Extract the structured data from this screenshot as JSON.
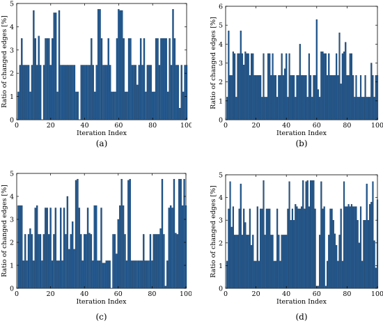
{
  "chart_data": [
    {
      "type": "bar",
      "panel_label": "(a)",
      "xlabel": "Iteration Index",
      "ylabel": "Ratio of changed edges [%]",
      "xlim": [
        0,
        100
      ],
      "ylim": [
        0,
        5
      ],
      "xticks": [
        "0",
        "20",
        "40",
        "60",
        "80",
        "100"
      ],
      "yticks": [
        "0",
        "1",
        "2",
        "3",
        "4",
        "5"
      ],
      "bar_color": "#1f5a96",
      "x": [
        1,
        2,
        3,
        4,
        5,
        6,
        7,
        8,
        9,
        10,
        11,
        12,
        13,
        14,
        15,
        16,
        17,
        18,
        19,
        20,
        21,
        22,
        23,
        24,
        25,
        26,
        27,
        28,
        29,
        30,
        31,
        32,
        33,
        34,
        35,
        36,
        37,
        38,
        39,
        40,
        41,
        42,
        43,
        44,
        45,
        46,
        47,
        48,
        49,
        50,
        51,
        52,
        53,
        54,
        55,
        56,
        57,
        58,
        59,
        60,
        61,
        62,
        63,
        64,
        65,
        66,
        67,
        68,
        69,
        70,
        71,
        72,
        73,
        74,
        75,
        76,
        77,
        78,
        79,
        80,
        81,
        82,
        83,
        84,
        85,
        86,
        87,
        88,
        89,
        90,
        91,
        92,
        93,
        94,
        95,
        96,
        97,
        98,
        99,
        100
      ],
      "values": [
        1.2,
        2.35,
        3.5,
        2.35,
        2.35,
        2.35,
        2.35,
        1.2,
        2.35,
        4.7,
        3.5,
        2.35,
        3.6,
        2.35,
        0,
        2.35,
        3.5,
        3.5,
        3.5,
        2.35,
        3.5,
        4.6,
        4.6,
        1.2,
        4.7,
        2.35,
        2.35,
        2.35,
        2.35,
        2.35,
        2.35,
        2.35,
        2.35,
        2.35,
        1.2,
        1.2,
        0,
        2.35,
        2.35,
        2.35,
        2.35,
        2.35,
        2.35,
        3.5,
        2.35,
        1.2,
        2.35,
        4.75,
        4.75,
        3.5,
        2.35,
        2.35,
        2.35,
        3.5,
        2.35,
        1.2,
        1.2,
        1.2,
        3.5,
        4.75,
        4.7,
        4.7,
        3.5,
        1.2,
        1.2,
        3.5,
        3.5,
        2.35,
        2.35,
        2.35,
        1.5,
        2.35,
        3.5,
        2.35,
        3.5,
        1.2,
        2.35,
        2.35,
        2.35,
        1.2,
        1.2,
        3.5,
        3.5,
        2.35,
        3.5,
        3.5,
        3.5,
        3.5,
        1.2,
        3.5,
        2.35,
        4.75,
        3.5,
        2.35,
        2.35,
        0.5,
        2.35,
        1.2,
        2.35,
        2.35
      ]
    },
    {
      "type": "bar",
      "panel_label": "(b)",
      "xlabel": "Iteration Index",
      "ylabel": "Ratio of changed edges [%]",
      "xlim": [
        0,
        100
      ],
      "ylim": [
        0,
        6
      ],
      "xticks": [
        "0",
        "20",
        "40",
        "60",
        "80",
        "100"
      ],
      "yticks": [
        "0",
        "1",
        "2",
        "3",
        "4",
        "5",
        "6"
      ],
      "bar_color": "#1f5a96",
      "x": [
        1,
        2,
        3,
        4,
        5,
        6,
        7,
        8,
        9,
        10,
        11,
        12,
        13,
        14,
        15,
        16,
        17,
        18,
        19,
        20,
        21,
        22,
        23,
        24,
        25,
        26,
        27,
        28,
        29,
        30,
        31,
        32,
        33,
        34,
        35,
        36,
        37,
        38,
        39,
        40,
        41,
        42,
        43,
        44,
        45,
        46,
        47,
        48,
        49,
        50,
        51,
        52,
        53,
        54,
        55,
        56,
        57,
        58,
        59,
        60,
        61,
        62,
        63,
        64,
        65,
        66,
        67,
        68,
        69,
        70,
        71,
        72,
        73,
        74,
        75,
        76,
        77,
        78,
        79,
        80,
        81,
        82,
        83,
        84,
        85,
        86,
        87,
        88,
        89,
        90,
        91,
        92,
        93,
        94,
        95,
        96,
        97,
        98,
        99,
        100
      ],
      "values": [
        1.2,
        4.7,
        2.35,
        2.35,
        3.6,
        3.5,
        1.2,
        3.5,
        3.5,
        4.7,
        3.5,
        2.9,
        3.6,
        3.5,
        3.5,
        2.35,
        3.5,
        3.5,
        2.35,
        2.35,
        2.35,
        2.35,
        2.35,
        1.2,
        3.5,
        1.2,
        1.2,
        3.5,
        3.5,
        2.35,
        3.5,
        2.35,
        2.35,
        1.2,
        2.35,
        2.35,
        3.5,
        2.35,
        2.7,
        3.5,
        1.2,
        3.5,
        2.35,
        2.35,
        2.35,
        1.2,
        2.35,
        2.35,
        4.0,
        2.35,
        2.35,
        2.35,
        2.35,
        1.2,
        3.5,
        2.35,
        1.2,
        2.35,
        2.35,
        5.3,
        1.6,
        1.2,
        3.6,
        3.6,
        3.5,
        3.5,
        2.35,
        3.5,
        2.35,
        2.35,
        2.35,
        2.35,
        3.5,
        2.35,
        4.6,
        1.9,
        3.5,
        3.6,
        4.1,
        2.35,
        2.35,
        3.5,
        3.5,
        2.35,
        1.2,
        2.35,
        1.2,
        1.2,
        2.35,
        1.2,
        1.2,
        2.35,
        1.2,
        1.2,
        1.2,
        3.0,
        2.35,
        1.2,
        2.35,
        2.35
      ]
    },
    {
      "type": "bar",
      "panel_label": "(c)",
      "xlabel": "Iteration Index",
      "ylabel": "Ratio of changed edges [%]",
      "xlim": [
        0,
        100
      ],
      "ylim": [
        0,
        5
      ],
      "xticks": [
        "0",
        "20",
        "40",
        "60",
        "80",
        "100"
      ],
      "yticks": [
        "0",
        "1",
        "2",
        "3",
        "4",
        "5"
      ],
      "bar_color": "#1f5a96",
      "x": [
        1,
        2,
        3,
        4,
        5,
        6,
        7,
        8,
        9,
        10,
        11,
        12,
        13,
        14,
        15,
        16,
        17,
        18,
        19,
        20,
        21,
        22,
        23,
        24,
        25,
        26,
        27,
        28,
        29,
        30,
        31,
        32,
        33,
        34,
        35,
        36,
        37,
        38,
        39,
        40,
        41,
        42,
        43,
        44,
        45,
        46,
        47,
        48,
        49,
        50,
        51,
        52,
        53,
        54,
        55,
        56,
        57,
        58,
        59,
        60,
        61,
        62,
        63,
        64,
        65,
        66,
        67,
        68,
        69,
        70,
        71,
        72,
        73,
        74,
        75,
        76,
        77,
        78,
        79,
        80,
        81,
        82,
        83,
        84,
        85,
        86,
        87,
        88,
        89,
        90,
        91,
        92,
        93,
        94,
        95,
        96,
        97,
        98,
        99,
        100
      ],
      "values": [
        3.6,
        3.6,
        3.6,
        1.2,
        2.35,
        1.2,
        2.35,
        2.6,
        2.35,
        1.2,
        3.5,
        3.6,
        2.35,
        2.35,
        1.2,
        2.35,
        3.5,
        3.5,
        2.35,
        3.5,
        1.2,
        2.35,
        3.5,
        1.2,
        1.2,
        3.5,
        1.2,
        3.5,
        2.35,
        4.0,
        1.7,
        2.35,
        2.9,
        1.7,
        4.7,
        4.75,
        3.5,
        2.35,
        1.2,
        2.35,
        2.35,
        3.5,
        2.4,
        2.35,
        1.2,
        3.6,
        3.6,
        1.2,
        1.2,
        3.5,
        1.1,
        1.1,
        1.2,
        1.2,
        1.2,
        0,
        2.35,
        2.35,
        1.5,
        3.0,
        3.6,
        4.75,
        3.6,
        2.35,
        1.2,
        4.7,
        4.75,
        1.2,
        1.2,
        1.2,
        1.2,
        1.2,
        1.2,
        1.2,
        2.35,
        1.2,
        1.2,
        1.2,
        2.35,
        1.2,
        2.35,
        2.35,
        2.35,
        2.35,
        2.6,
        4.75,
        2.35,
        0.1,
        1.2,
        3.5,
        3.6,
        3.5,
        4.75,
        2.4,
        2.35,
        4.75,
        4.75,
        3.6,
        4.75,
        3.6
      ]
    },
    {
      "type": "bar",
      "panel_label": "(d)",
      "xlabel": "Iteration Index",
      "ylabel": "Ratio of changed edges [%]",
      "xlim": [
        0,
        100
      ],
      "ylim": [
        0,
        5
      ],
      "xticks": [
        "0",
        "20",
        "40",
        "60",
        "80",
        "100"
      ],
      "yticks": [
        "0",
        "1",
        "2",
        "3",
        "4",
        "5"
      ],
      "bar_color": "#1f5a96",
      "x": [
        1,
        2,
        3,
        4,
        5,
        6,
        7,
        8,
        9,
        10,
        11,
        12,
        13,
        14,
        15,
        16,
        17,
        18,
        19,
        20,
        21,
        22,
        23,
        24,
        25,
        26,
        27,
        28,
        29,
        30,
        31,
        32,
        33,
        34,
        35,
        36,
        37,
        38,
        39,
        40,
        41,
        42,
        43,
        44,
        45,
        46,
        47,
        48,
        49,
        50,
        51,
        52,
        53,
        54,
        55,
        56,
        57,
        58,
        59,
        60,
        61,
        62,
        63,
        64,
        65,
        66,
        67,
        68,
        69,
        70,
        71,
        72,
        73,
        74,
        75,
        76,
        77,
        78,
        79,
        80,
        81,
        82,
        83,
        84,
        85,
        86,
        87,
        88,
        89,
        90,
        91,
        92,
        93,
        94,
        95,
        96,
        97,
        98,
        99,
        100
      ],
      "values": [
        1.2,
        3.5,
        4.7,
        2.7,
        3.6,
        2.35,
        2.35,
        2.35,
        3.5,
        4.6,
        2.35,
        3.5,
        2.9,
        2.35,
        2.35,
        3.5,
        1.9,
        2.35,
        1.2,
        1.2,
        3.6,
        1.2,
        3.5,
        3.5,
        4.75,
        2.35,
        3.5,
        3.5,
        3.5,
        2.35,
        2.35,
        1.2,
        1.2,
        3.5,
        2.35,
        1.2,
        2.35,
        2.35,
        2.35,
        2.35,
        3.5,
        4.7,
        3.0,
        3.5,
        3.0,
        3.7,
        3.6,
        3.5,
        3.5,
        3.6,
        4.75,
        3.5,
        4.7,
        4.75,
        3.6,
        4.75,
        4.75,
        4.75,
        3.5,
        0.1,
        0.1,
        2.35,
        4.7,
        3.5,
        3.6,
        0.1,
        1.2,
        2.35,
        3.5,
        3.5,
        3.0,
        2.4,
        1.9,
        1.2,
        2.35,
        3.5,
        1.2,
        4.7,
        3.6,
        3.6,
        3.7,
        3.6,
        3.7,
        3.6,
        3.6,
        3.6,
        3.0,
        2.0,
        3.6,
        1.2,
        3.0,
        3.0,
        4.6,
        3.0,
        3.7,
        3.8,
        4.7,
        2.1,
        0.9,
        3.9
      ]
    }
  ]
}
